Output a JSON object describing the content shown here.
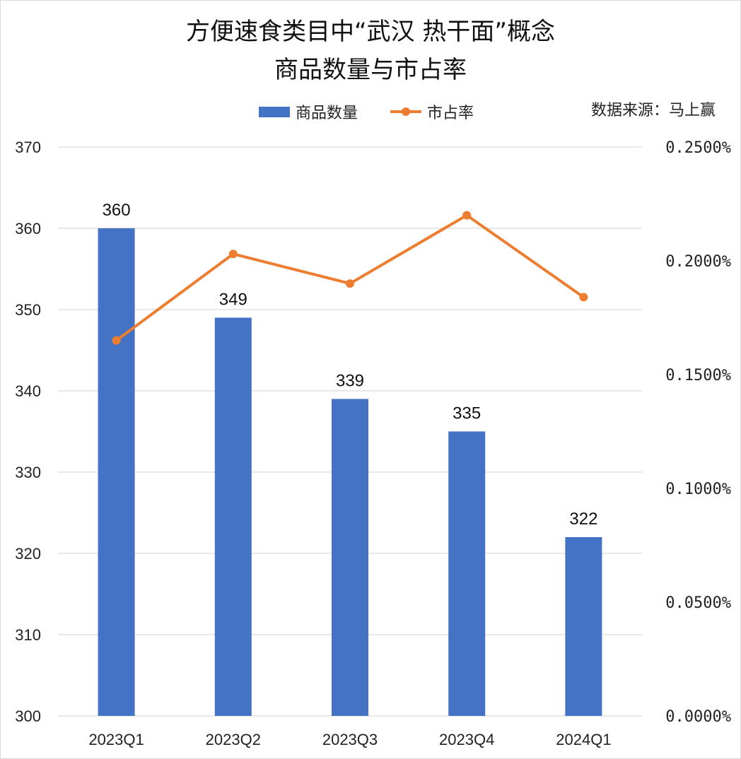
{
  "chart_data": {
    "type": "bar",
    "title_lines": [
      "方便速食类目中“武汉 热干面”概念",
      "商品数量与市占率"
    ],
    "source": "数据来源：马上赢",
    "categories": [
      "2023Q1",
      "2023Q2",
      "2023Q3",
      "2023Q4",
      "2024Q1"
    ],
    "series": [
      {
        "name": "商品数量",
        "type": "bar",
        "axis": "left",
        "color": "#4472C4",
        "values": [
          360,
          349,
          339,
          335,
          322
        ],
        "labels": [
          "360",
          "349",
          "339",
          "335",
          "322"
        ]
      },
      {
        "name": "市占率",
        "type": "line",
        "axis": "right",
        "color": "#ED7D31",
        "values": [
          0.00165,
          0.00203,
          0.0019,
          0.0022,
          0.00184
        ]
      }
    ],
    "y_left": {
      "min": 300,
      "max": 370,
      "ticks": [
        300,
        310,
        320,
        330,
        340,
        350,
        360,
        370
      ],
      "tick_labels": [
        "300",
        "310",
        "320",
        "330",
        "340",
        "350",
        "360",
        "370"
      ]
    },
    "y_right": {
      "min": 0,
      "max": 0.0025,
      "ticks": [
        0,
        0.0005,
        0.001,
        0.0015,
        0.002,
        0.0025
      ],
      "tick_labels": [
        "0.0000%",
        "0.0500%",
        "0.1000%",
        "0.1500%",
        "0.2000%",
        "0.2500%"
      ]
    },
    "grid": true,
    "legend": "top-center"
  }
}
